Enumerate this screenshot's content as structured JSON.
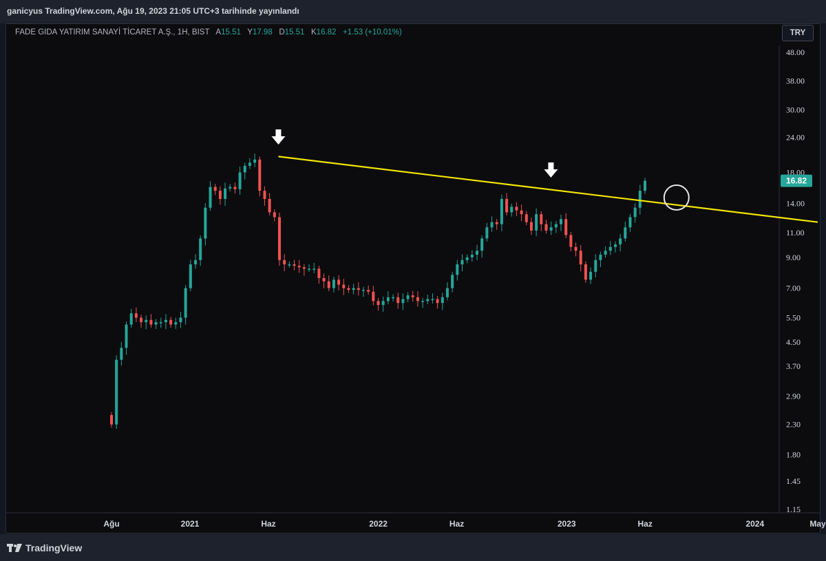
{
  "header": {
    "published": "ganicyus TradingView.com, Ağu 19, 2023 21:05 UTC+3 tarihinde yayınlandı"
  },
  "legend": {
    "symbol": "FADE GIDA YATIRIM SANAYİ TİCARET A.Ş., 1H, BIST",
    "open_label": "A",
    "open": "15.51",
    "high_label": "Y",
    "high": "17.98",
    "low_label": "D",
    "low": "15.51",
    "close_label": "K",
    "close": "16.82",
    "change": "+1.53 (+10.01%)"
  },
  "currency": "TRY",
  "footer": {
    "brand": "TradingView"
  },
  "colors": {
    "up": "#26a69a",
    "down": "#ef5350",
    "trendline": "#f3e600",
    "background": "#0c0c0f"
  },
  "chart_data": {
    "type": "candlestick",
    "y_scale": "log",
    "ylim": [
      1.0,
      50.0
    ],
    "y_ticks": [
      "48.00",
      "38.00",
      "30.00",
      "24.00",
      "18.00",
      "14.00",
      "11.00",
      "9.00",
      "7.00",
      "5.50",
      "4.50",
      "3.70",
      "2.90",
      "2.30",
      "1.80",
      "1.45",
      "1.15"
    ],
    "last_price": "16.82",
    "x_ticks": [
      {
        "label": "Ağu",
        "date": "2020-08"
      },
      {
        "label": "2021",
        "date": "2021-01"
      },
      {
        "label": "Haz",
        "date": "2021-06"
      },
      {
        "label": "2022",
        "date": "2022-01"
      },
      {
        "label": "Haz",
        "date": "2022-06"
      },
      {
        "label": "2023",
        "date": "2023-01"
      },
      {
        "label": "Haz",
        "date": "2023-06"
      },
      {
        "label": "2024",
        "date": "2024-01"
      },
      {
        "label": "May",
        "date": "2024-05"
      }
    ],
    "weekly_close": [
      2.3,
      3.9,
      4.3,
      5.2,
      5.7,
      5.5,
      5.3,
      5.4,
      5.2,
      5.3,
      5.3,
      5.4,
      5.2,
      5.3,
      5.5,
      7.0,
      8.5,
      8.8,
      10.5,
      13.5,
      16.0,
      15.5,
      14.5,
      15.8,
      16.0,
      15.7,
      18.0,
      19.0,
      19.5,
      20.0,
      15.5,
      14.5,
      13.0,
      12.5,
      8.8,
      8.5,
      8.5,
      8.4,
      8.3,
      8.2,
      8.2,
      8.2,
      7.6,
      7.4,
      7.0,
      7.5,
      7.2,
      7.0,
      6.9,
      7.0,
      6.9,
      6.9,
      6.8,
      6.3,
      6.1,
      6.3,
      6.5,
      6.5,
      6.2,
      6.4,
      6.6,
      6.5,
      6.3,
      6.3,
      6.4,
      6.4,
      6.2,
      6.5,
      7.0,
      7.8,
      8.5,
      8.8,
      9.0,
      9.2,
      9.5,
      10.5,
      11.5,
      12.0,
      11.8,
      14.5,
      13.0,
      13.6,
      13.2,
      12.8,
      12.0,
      11.2,
      12.8,
      11.8,
      11.2,
      11.5,
      11.8,
      12.3,
      10.8,
      9.8,
      9.5,
      8.5,
      7.5,
      8.0,
      8.8,
      9.2,
      9.5,
      9.8,
      10.0,
      10.5,
      11.5,
      12.5,
      13.5,
      15.5,
      16.82
    ],
    "trendline": [
      {
        "date": "2021-06-20",
        "price": 20.5
      },
      {
        "date": "2022-12-01",
        "price": 15.7
      },
      {
        "date": "2024-05-01",
        "price": 12.0
      }
    ],
    "annotations": [
      "down-arrow at 2021-06 peak",
      "down-arrow at 2022-12 peak",
      "circle at 2023-08 breakout"
    ]
  }
}
